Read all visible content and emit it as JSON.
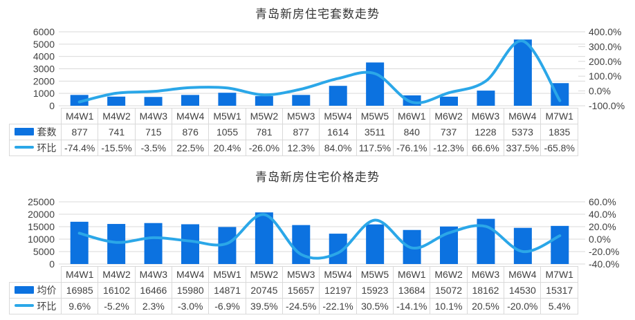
{
  "colors": {
    "bar": "#0c72e0",
    "line": "#2ba7e8",
    "grid": "#d9d9d9",
    "axis_text": "#404040",
    "title_text": "#333333",
    "table_border": "#d9d9d9",
    "table_text": "#404040"
  },
  "chart_data": [
    {
      "type": "combo_bar_line",
      "title": "青岛新房住宅套数走势",
      "categories": [
        "M4W1",
        "M4W2",
        "M4W3",
        "M4W4",
        "M5W1",
        "M5W2",
        "M5W3",
        "M5W4",
        "M5W5",
        "M6W1",
        "M6W2",
        "M6W3",
        "M6W4",
        "M7W1"
      ],
      "series": [
        {
          "name": "套数",
          "type": "bar",
          "axis": "left",
          "values": [
            877,
            741,
            715,
            876,
            1055,
            781,
            877,
            1614,
            3511,
            840,
            737,
            1228,
            5373,
            1835
          ]
        },
        {
          "name": "环比",
          "type": "line",
          "axis": "right",
          "unit": "%",
          "values": [
            -74.4,
            -15.5,
            -3.5,
            22.5,
            20.4,
            -26.0,
            12.3,
            84.0,
            117.5,
            -76.1,
            -12.3,
            66.6,
            337.5,
            -65.8
          ]
        }
      ],
      "left_axis": {
        "min": 0,
        "max": 6000,
        "step": 1000,
        "format": "int"
      },
      "right_axis": {
        "min": -100,
        "max": 400,
        "step": 100,
        "format": "percent_1dp"
      },
      "grid": true,
      "legend_position": "table-left"
    },
    {
      "type": "combo_bar_line",
      "title": "青岛新房住宅价格走势",
      "categories": [
        "M4W1",
        "M4W2",
        "M4W3",
        "M4W4",
        "M5W1",
        "M5W2",
        "M5W3",
        "M5W4",
        "M5W5",
        "M6W1",
        "M6W2",
        "M6W3",
        "M6W4",
        "M7W1"
      ],
      "series": [
        {
          "name": "均价",
          "type": "bar",
          "axis": "left",
          "values": [
            16985,
            16102,
            16466,
            15980,
            14871,
            20745,
            15657,
            12197,
            15923,
            13684,
            15072,
            18162,
            14530,
            15317
          ]
        },
        {
          "name": "环比",
          "type": "line",
          "axis": "right",
          "unit": "%",
          "values": [
            9.6,
            -5.2,
            2.3,
            -3.0,
            -6.9,
            39.5,
            -24.5,
            -22.1,
            30.5,
            -14.1,
            10.1,
            20.5,
            -20.0,
            5.4
          ]
        }
      ],
      "left_axis": {
        "min": 0,
        "max": 25000,
        "step": 5000,
        "format": "int"
      },
      "right_axis": {
        "min": -40,
        "max": 60,
        "step": 20,
        "format": "percent_1dp"
      },
      "grid": true,
      "legend_position": "table-left"
    }
  ]
}
